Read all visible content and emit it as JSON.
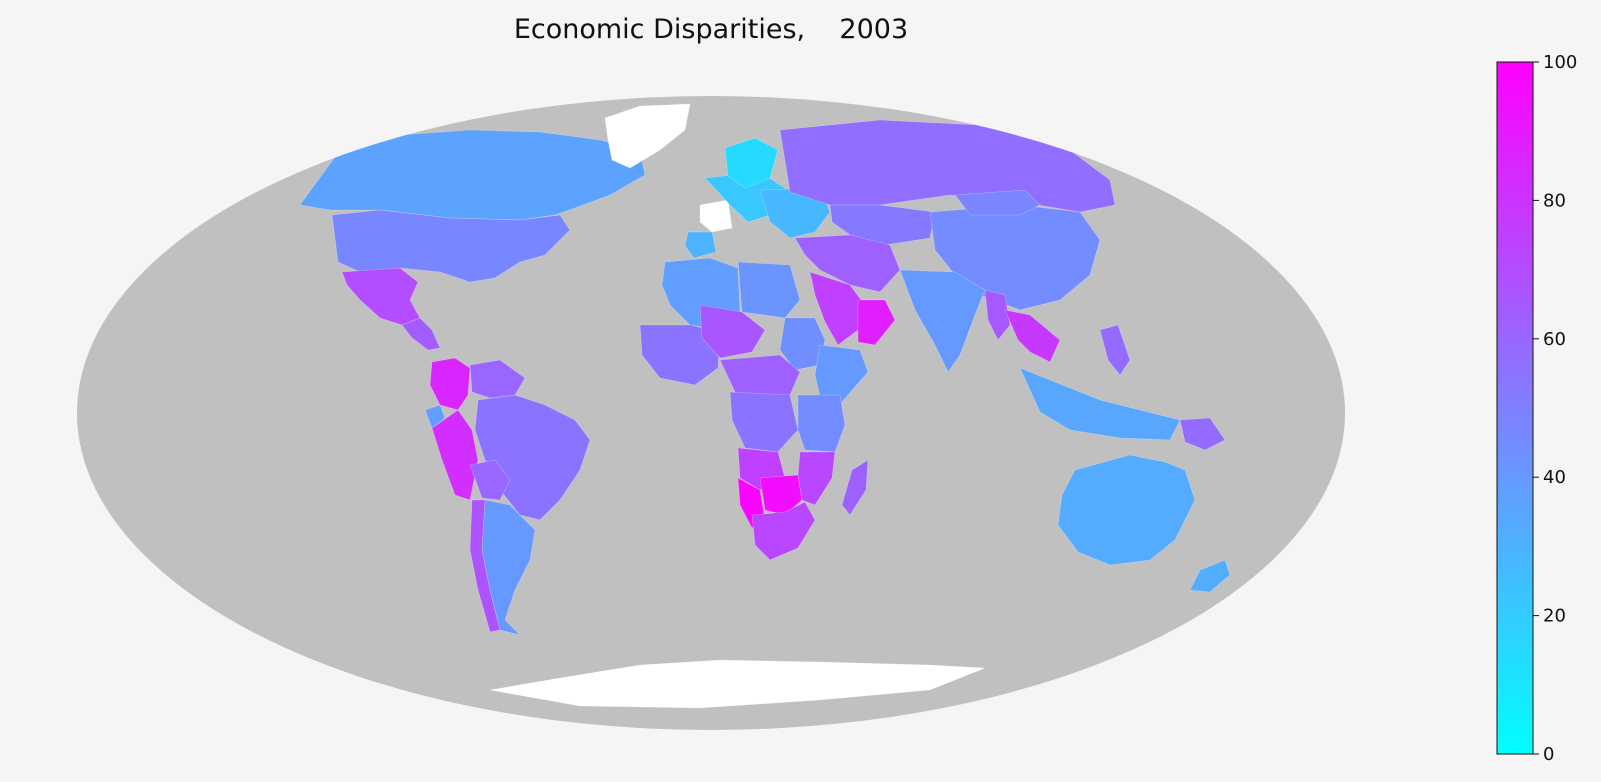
{
  "chart_data": {
    "type": "choropleth",
    "title": "Economic Disparities,    2003",
    "projection": "mollweide",
    "ocean_color": "#c0c0c0",
    "no_data_color": "#ffffff",
    "colorbar": {
      "colormap": "cool",
      "color_low": "#00ffff",
      "color_high": "#ff00ff",
      "range": [
        0,
        100
      ],
      "ticks": [
        {
          "value": 0,
          "label": "0"
        },
        {
          "value": 20,
          "label": "20"
        },
        {
          "value": 40,
          "label": "40"
        },
        {
          "value": 60,
          "label": "60"
        },
        {
          "value": 80,
          "label": "80"
        },
        {
          "value": 100,
          "label": "100"
        }
      ]
    },
    "regions": [
      {
        "name": "Canada",
        "value": 36
      },
      {
        "name": "United States",
        "value": 47
      },
      {
        "name": "Mexico",
        "value": 70
      },
      {
        "name": "Central America",
        "value": 64
      },
      {
        "name": "Colombia",
        "value": 85
      },
      {
        "name": "Venezuela",
        "value": 60
      },
      {
        "name": "Ecuador",
        "value": 38
      },
      {
        "name": "Peru",
        "value": 82
      },
      {
        "name": "Brazil",
        "value": 55
      },
      {
        "name": "Bolivia",
        "value": 60
      },
      {
        "name": "Argentina",
        "value": 40
      },
      {
        "name": "Chile",
        "value": 68
      },
      {
        "name": "Greenland",
        "value": null
      },
      {
        "name": "France",
        "value": null
      },
      {
        "name": "Iberia",
        "value": 30
      },
      {
        "name": "Western Europe",
        "value": 22
      },
      {
        "name": "Scandinavia",
        "value": 15
      },
      {
        "name": "Eastern Europe",
        "value": 28
      },
      {
        "name": "Russia",
        "value": 57
      },
      {
        "name": "Kazakhstan",
        "value": 52
      },
      {
        "name": "Middle East",
        "value": 62
      },
      {
        "name": "Saudi Arabia",
        "value": 75
      },
      {
        "name": "Oman",
        "value": 88
      },
      {
        "name": "North Africa",
        "value": 38
      },
      {
        "name": "Libya",
        "value": 42
      },
      {
        "name": "West Africa",
        "value": 55
      },
      {
        "name": "Niger",
        "value": 66
      },
      {
        "name": "Sudan",
        "value": 44
      },
      {
        "name": "Horn of Africa",
        "value": 40
      },
      {
        "name": "Central Africa",
        "value": 62
      },
      {
        "name": "Congo",
        "value": 55
      },
      {
        "name": "East Africa",
        "value": 45
      },
      {
        "name": "Angola",
        "value": 75
      },
      {
        "name": "Namibia",
        "value": 98
      },
      {
        "name": "Botswana",
        "value": 95
      },
      {
        "name": "South Africa",
        "value": 72
      },
      {
        "name": "Mozambique",
        "value": 72
      },
      {
        "name": "Madagascar",
        "value": 62
      },
      {
        "name": "China",
        "value": 45
      },
      {
        "name": "Mongolia",
        "value": 48
      },
      {
        "name": "India",
        "value": 40
      },
      {
        "name": "Myanmar",
        "value": 65
      },
      {
        "name": "Thailand",
        "value": 78
      },
      {
        "name": "Indonesia",
        "value": 35
      },
      {
        "name": "Philippines",
        "value": 58
      },
      {
        "name": "Papua New Guinea",
        "value": 58
      },
      {
        "name": "Australia",
        "value": 33
      },
      {
        "name": "New Zealand",
        "value": 32
      },
      {
        "name": "Antarctica",
        "value": null
      }
    ]
  }
}
